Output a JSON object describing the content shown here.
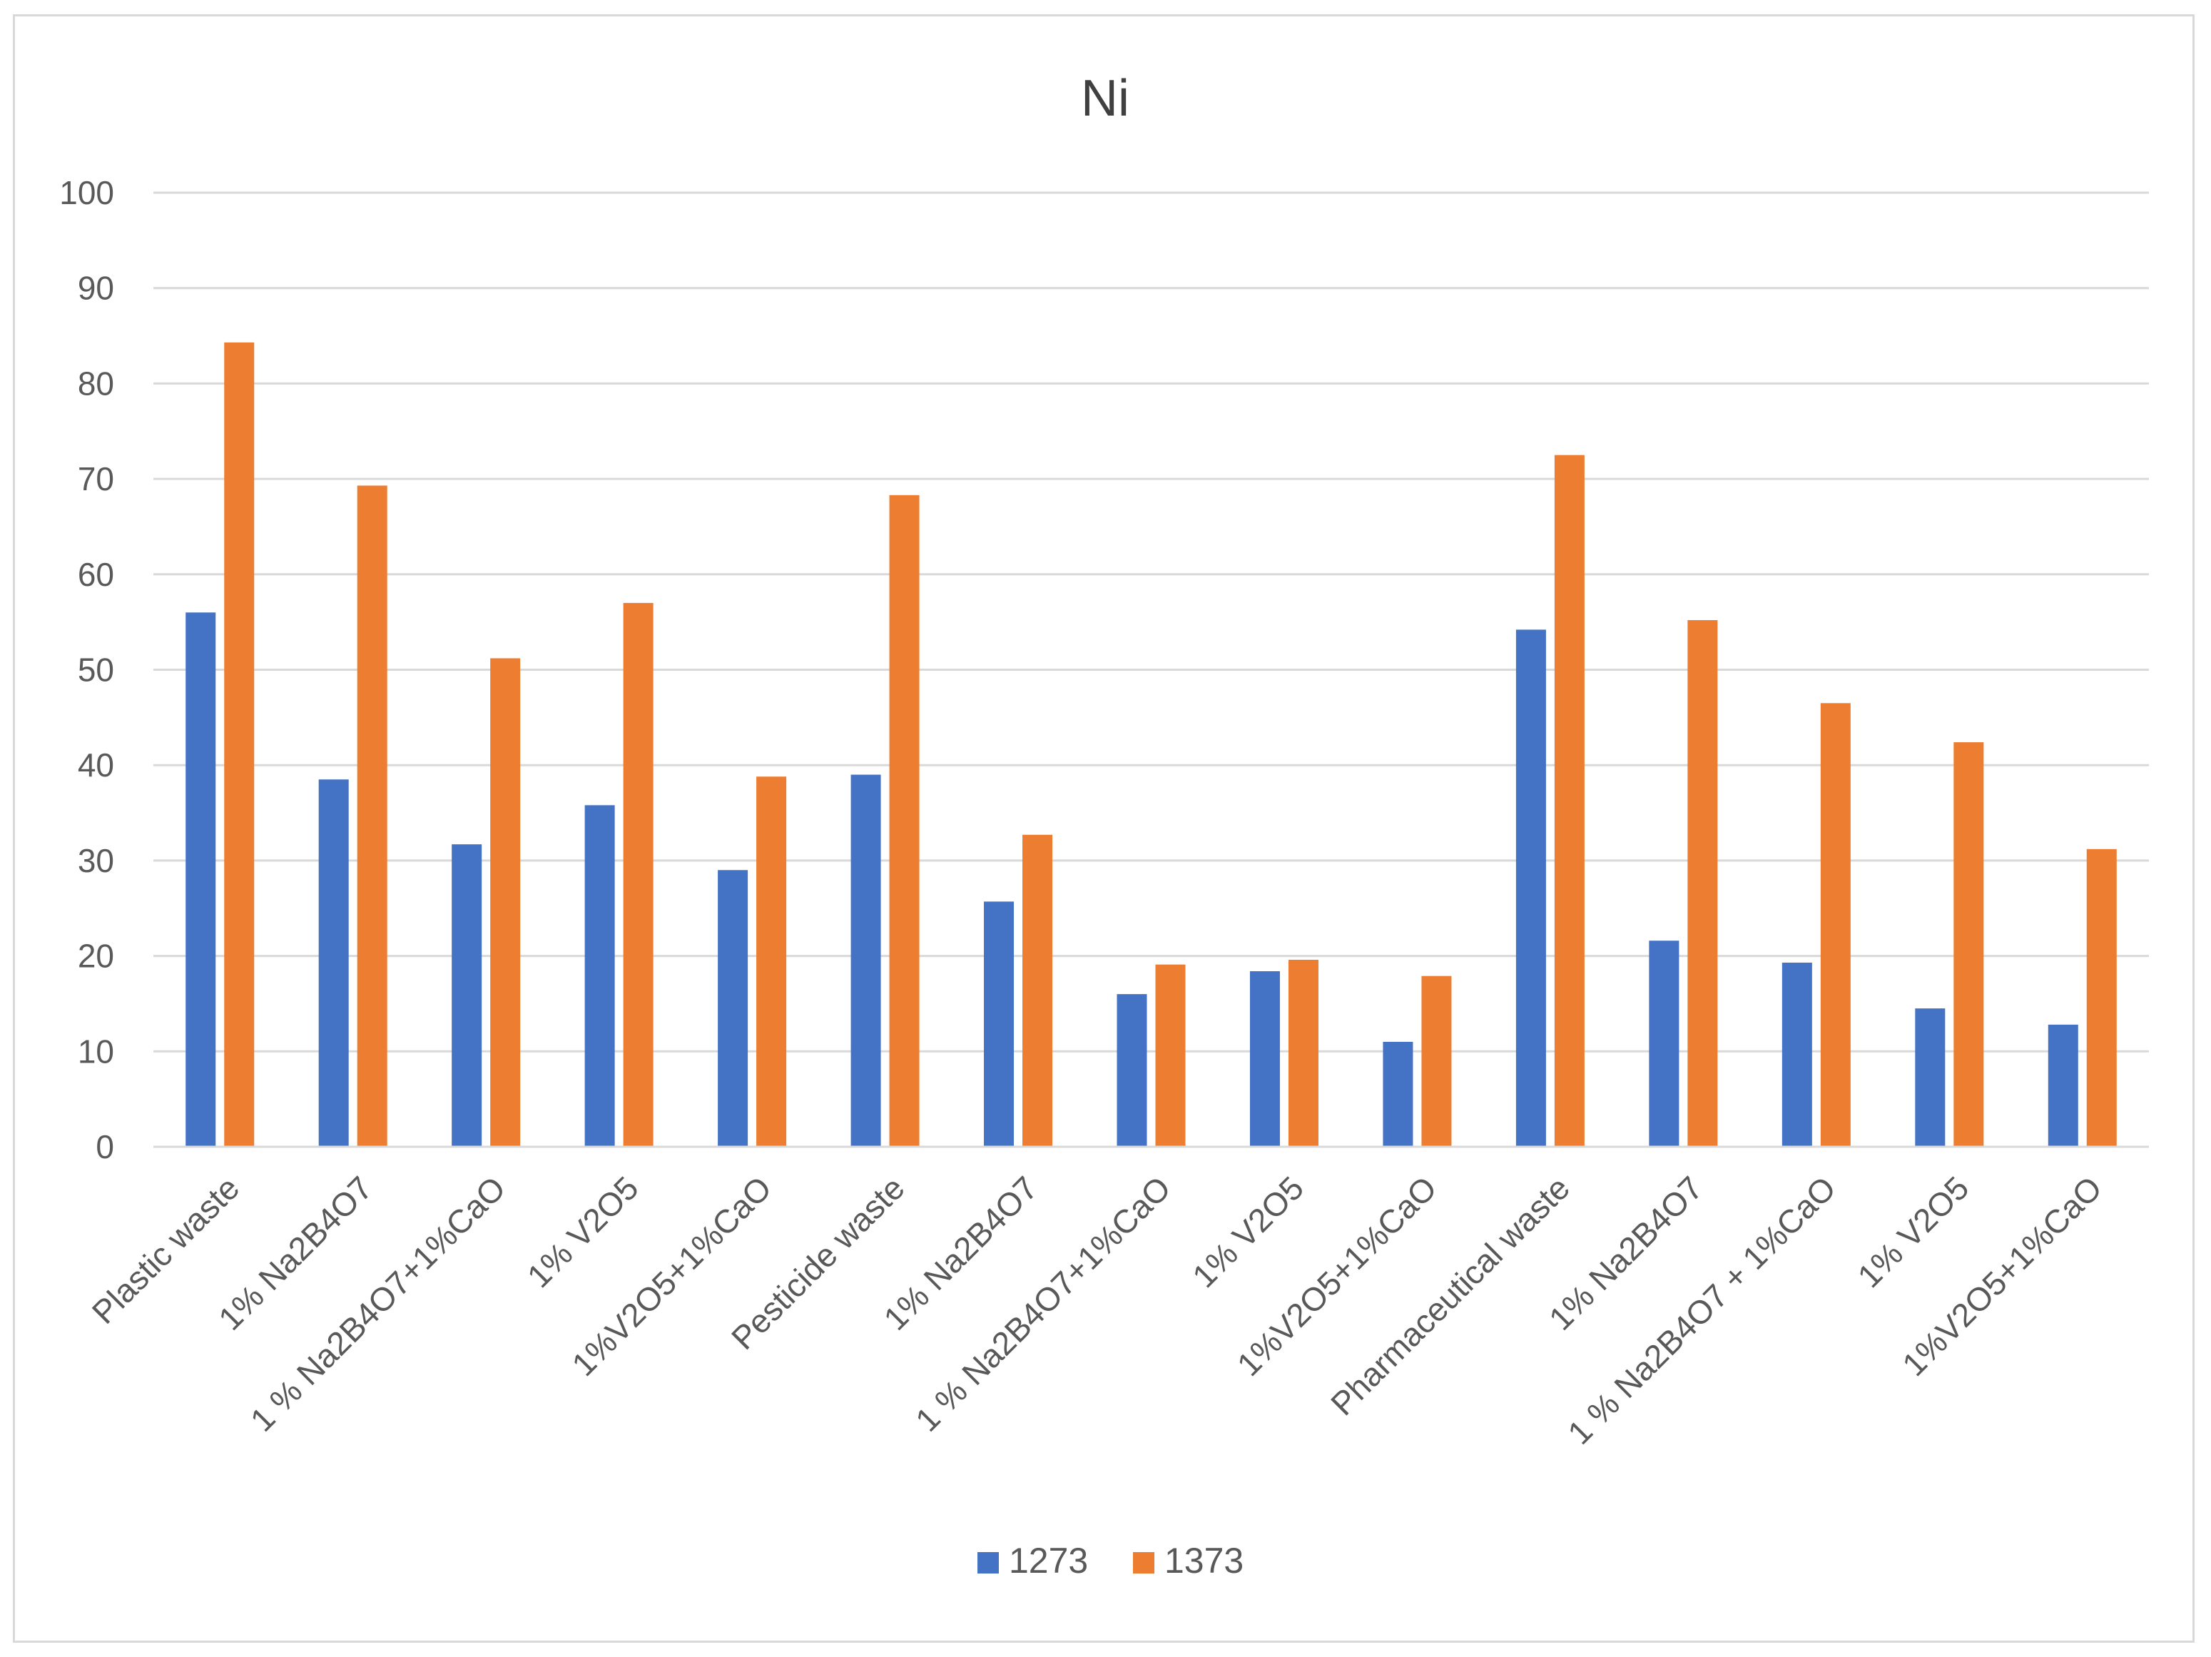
{
  "chart_data": {
    "type": "bar",
    "title": "Ni",
    "xlabel": "",
    "ylabel": "",
    "ylim": [
      0,
      100
    ],
    "yticks": [
      0,
      10,
      20,
      30,
      40,
      50,
      60,
      70,
      80,
      90,
      100
    ],
    "grid": true,
    "legend_position": "bottom",
    "categories": [
      "Plastic waste",
      "1% Na2B4O7",
      "1 % Na2B4O7+1%CaO",
      "1% V2O5",
      "1%V2O5+1%CaO",
      "Pesticide waste",
      "1% Na2B4O7",
      "1 % Na2B4O7+1%CaO",
      "1% V2O5",
      "1%V2O5+1%CaO",
      "Pharmaceutical waste",
      "1% Na2B4O7",
      "1 % Na2B4O7 + 1%CaO",
      "1% V2O5",
      "1%V2O5+1%CaO"
    ],
    "series": [
      {
        "name": "1273",
        "color": "#4472C4",
        "values": [
          56,
          38.5,
          31.7,
          35.8,
          29,
          39,
          25.7,
          16,
          18.4,
          11,
          54.2,
          21.6,
          19.3,
          14.5,
          12.8
        ]
      },
      {
        "name": "1373",
        "color": "#ED7D31",
        "values": [
          84.3,
          69.3,
          51.2,
          57,
          38.8,
          68.3,
          32.7,
          19.1,
          19.6,
          17.9,
          72.5,
          55.2,
          46.5,
          42.4,
          31.2
        ]
      }
    ]
  },
  "colors": {
    "grid": "#d9d9d9",
    "axis": "#d9d9d9",
    "text": "#595959",
    "title": "#404040",
    "frame": "#d9d9d9"
  }
}
